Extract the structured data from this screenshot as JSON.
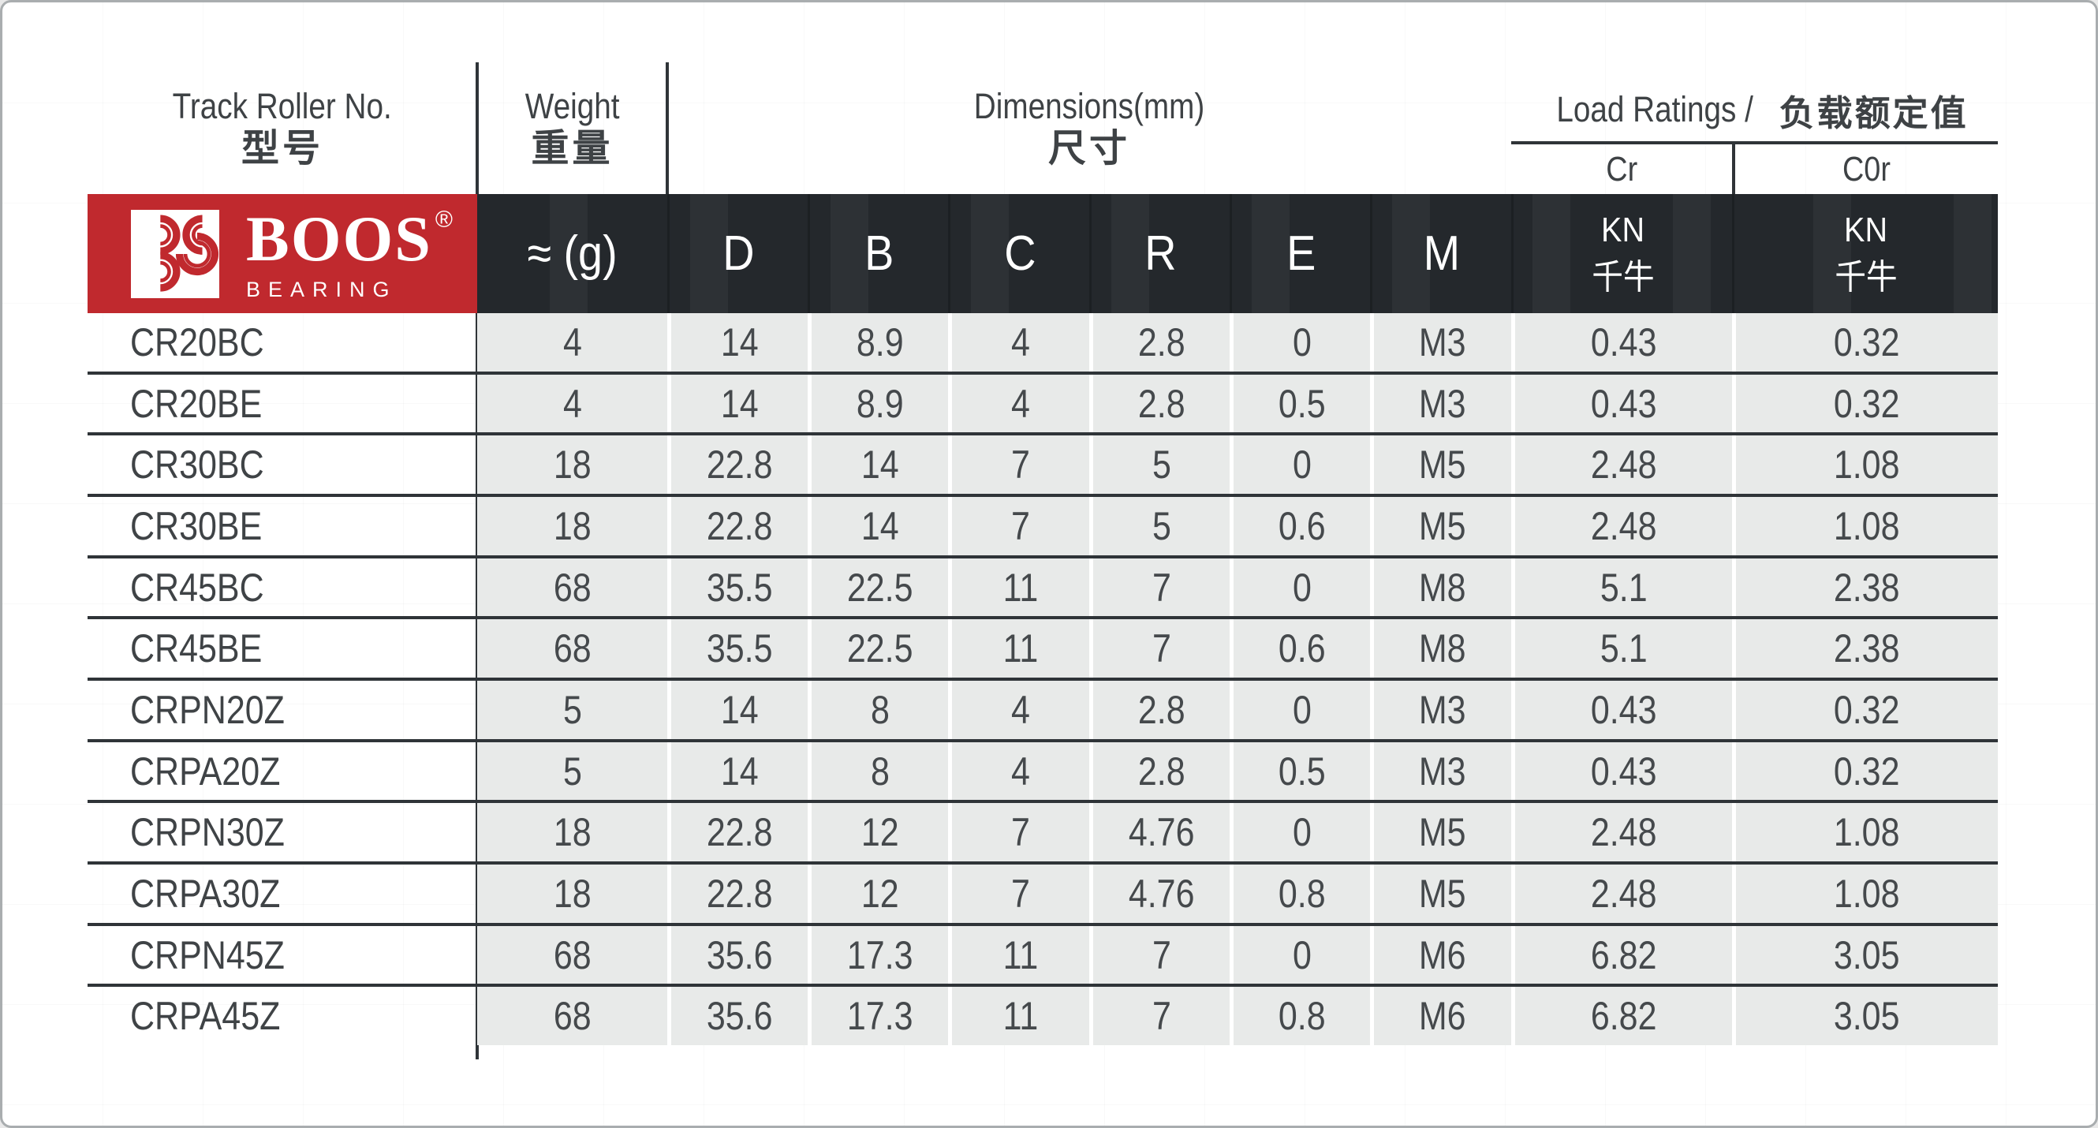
{
  "brand": {
    "name": "BOOS",
    "reg": "®",
    "tagline": "BEARING",
    "accent_color": "#c0292e",
    "monogram": "3S-arcs-icon"
  },
  "header": {
    "model": {
      "en": "Track Roller No.",
      "zh": "型号"
    },
    "weight": {
      "en": "Weight",
      "zh": "重量"
    },
    "dims": {
      "en": "Dimensions(mm)",
      "zh": "尺寸"
    },
    "load": {
      "en": "Load Ratings /",
      "zh": "负载额定值",
      "cr": "Cr",
      "c0r": "C0r"
    },
    "weight_unit": "≈ (g)",
    "dim_cols": [
      "D",
      "B",
      "C",
      "R",
      "E",
      "M"
    ],
    "kn": {
      "en": "KN",
      "zh": "千牛"
    }
  },
  "colors": {
    "header_band": "#24282c",
    "logo_red": "#c0292e",
    "cell_gray": "#e8eae9",
    "rule_dark": "#2f3438"
  },
  "rows": [
    {
      "model": "CR20BC",
      "weight": "4",
      "d": "14",
      "b": "8.9",
      "c": "4",
      "r": "2.8",
      "e": "0",
      "m": "M3",
      "cr": "0.43",
      "c0r": "0.32"
    },
    {
      "model": "CR20BE",
      "weight": "4",
      "d": "14",
      "b": "8.9",
      "c": "4",
      "r": "2.8",
      "e": "0.5",
      "m": "M3",
      "cr": "0.43",
      "c0r": "0.32"
    },
    {
      "model": "CR30BC",
      "weight": "18",
      "d": "22.8",
      "b": "14",
      "c": "7",
      "r": "5",
      "e": "0",
      "m": "M5",
      "cr": "2.48",
      "c0r": "1.08"
    },
    {
      "model": "CR30BE",
      "weight": "18",
      "d": "22.8",
      "b": "14",
      "c": "7",
      "r": "5",
      "e": "0.6",
      "m": "M5",
      "cr": "2.48",
      "c0r": "1.08"
    },
    {
      "model": "CR45BC",
      "weight": "68",
      "d": "35.5",
      "b": "22.5",
      "c": "11",
      "r": "7",
      "e": "0",
      "m": "M8",
      "cr": "5.1",
      "c0r": "2.38"
    },
    {
      "model": "CR45BE",
      "weight": "68",
      "d": "35.5",
      "b": "22.5",
      "c": "11",
      "r": "7",
      "e": "0.6",
      "m": "M8",
      "cr": "5.1",
      "c0r": "2.38"
    },
    {
      "model": "CRPN20Z",
      "weight": "5",
      "d": "14",
      "b": "8",
      "c": "4",
      "r": "2.8",
      "e": "0",
      "m": "M3",
      "cr": "0.43",
      "c0r": "0.32"
    },
    {
      "model": "CRPA20Z",
      "weight": "5",
      "d": "14",
      "b": "8",
      "c": "4",
      "r": "2.8",
      "e": "0.5",
      "m": "M3",
      "cr": "0.43",
      "c0r": "0.32"
    },
    {
      "model": "CRPN30Z",
      "weight": "18",
      "d": "22.8",
      "b": "12",
      "c": "7",
      "r": "4.76",
      "e": "0",
      "m": "M5",
      "cr": "2.48",
      "c0r": "1.08"
    },
    {
      "model": "CRPA30Z",
      "weight": "18",
      "d": "22.8",
      "b": "12",
      "c": "7",
      "r": "4.76",
      "e": "0.8",
      "m": "M5",
      "cr": "2.48",
      "c0r": "1.08"
    },
    {
      "model": "CRPN45Z",
      "weight": "68",
      "d": "35.6",
      "b": "17.3",
      "c": "11",
      "r": "7",
      "e": "0",
      "m": "M6",
      "cr": "6.82",
      "c0r": "3.05"
    },
    {
      "model": "CRPA45Z",
      "weight": "68",
      "d": "35.6",
      "b": "17.3",
      "c": "11",
      "r": "7",
      "e": "0.8",
      "m": "M6",
      "cr": "6.82",
      "c0r": "3.05"
    }
  ]
}
